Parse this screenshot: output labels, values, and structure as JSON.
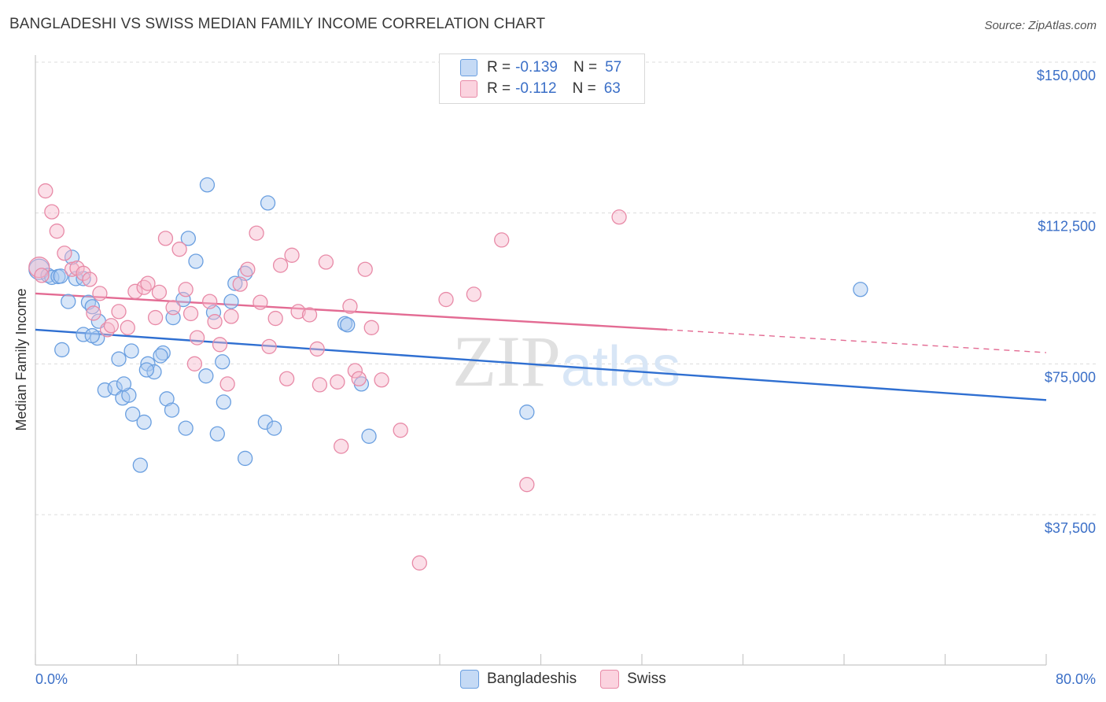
{
  "title": "BANGLADESHI VS SWISS MEDIAN FAMILY INCOME CORRELATION CHART",
  "source": "Source: ZipAtlas.com",
  "legend": {
    "rows": [
      {
        "r_label": "R =",
        "r_value": "-0.139",
        "n_label": "N =",
        "n_value": "57",
        "color": "#a9c8f0"
      },
      {
        "r_label": "R =",
        "r_value": "-0.112",
        "n_label": "N =",
        "n_value": "63",
        "color": "#f7b8cb"
      }
    ]
  },
  "bottom_legend": {
    "items": [
      {
        "label": "Bangladeshis",
        "color": "#a9c8f0"
      },
      {
        "label": "Swiss",
        "color": "#f7b8cb"
      }
    ]
  },
  "chart_data": {
    "type": "scatter",
    "title": "BANGLADESHI VS SWISS MEDIAN FAMILY INCOME CORRELATION CHART",
    "xlabel": "",
    "ylabel": "Median Family Income",
    "xlim": [
      0,
      80
    ],
    "ylim": [
      0,
      155000
    ],
    "x_tick_labels": [
      "0.0%",
      "80.0%"
    ],
    "y_ticks": [
      37500,
      75000,
      112500,
      150000
    ],
    "y_tick_labels": [
      "$37,500",
      "$75,000",
      "$112,500",
      "$150,000"
    ],
    "grid": true,
    "legend_position": "top-center",
    "watermark": "ZIPatlas",
    "series": [
      {
        "name": "Bangladeshis",
        "color": "#6a9fe0",
        "fill": "#a9c8f0",
        "trend": {
          "x": [
            0,
            80
          ],
          "y": [
            83500,
            66000
          ],
          "color": "#2f6fd1"
        },
        "points": [
          [
            0.3,
            98500
          ],
          [
            1.0,
            97000
          ],
          [
            1.3,
            96500
          ],
          [
            1.8,
            96700
          ],
          [
            2.0,
            96800
          ],
          [
            2.9,
            101500
          ],
          [
            3.2,
            96200
          ],
          [
            2.6,
            90500
          ],
          [
            4.2,
            90300
          ],
          [
            4.5,
            89200
          ],
          [
            3.8,
            96200
          ],
          [
            5.0,
            85600
          ],
          [
            3.8,
            82300
          ],
          [
            4.9,
            81400
          ],
          [
            4.5,
            82000
          ],
          [
            6.6,
            76200
          ],
          [
            2.1,
            78500
          ],
          [
            7.6,
            78200
          ],
          [
            8.9,
            75000
          ],
          [
            9.4,
            73000
          ],
          [
            10.1,
            77700
          ],
          [
            9.9,
            77000
          ],
          [
            8.8,
            73500
          ],
          [
            5.5,
            68500
          ],
          [
            6.3,
            69000
          ],
          [
            6.9,
            66500
          ],
          [
            7.4,
            67200
          ],
          [
            7.0,
            70000
          ],
          [
            10.4,
            66300
          ],
          [
            10.8,
            63500
          ],
          [
            7.7,
            62500
          ],
          [
            8.6,
            60500
          ],
          [
            11.9,
            59000
          ],
          [
            13.5,
            72000
          ],
          [
            14.1,
            87800
          ],
          [
            11.7,
            91000
          ],
          [
            10.9,
            86500
          ],
          [
            14.9,
            65500
          ],
          [
            15.5,
            90500
          ],
          [
            15.8,
            95000
          ],
          [
            16.6,
            97500
          ],
          [
            14.8,
            75500
          ],
          [
            14.4,
            57600
          ],
          [
            18.2,
            60500
          ],
          [
            18.9,
            59000
          ],
          [
            16.6,
            51500
          ],
          [
            8.3,
            49800
          ],
          [
            12.1,
            106200
          ],
          [
            12.7,
            100500
          ],
          [
            13.6,
            119500
          ],
          [
            18.4,
            115000
          ],
          [
            24.5,
            85000
          ],
          [
            24.7,
            84700
          ],
          [
            25.8,
            70000
          ],
          [
            26.4,
            57000
          ],
          [
            38.9,
            63000
          ],
          [
            65.3,
            93500
          ]
        ]
      },
      {
        "name": "Swiss",
        "color": "#e88aa7",
        "fill": "#f7b8cb",
        "trend": {
          "x": [
            0,
            50,
            80
          ],
          "y": [
            92500,
            83500,
            77800
          ],
          "color": "#e36b93",
          "solid_until": 50
        },
        "points": [
          [
            0.3,
            99000
          ],
          [
            0.8,
            118000
          ],
          [
            1.3,
            112800
          ],
          [
            1.7,
            108000
          ],
          [
            2.3,
            102500
          ],
          [
            2.9,
            98500
          ],
          [
            3.3,
            98800
          ],
          [
            3.8,
            97500
          ],
          [
            4.3,
            96000
          ],
          [
            4.6,
            87600
          ],
          [
            5.1,
            92500
          ],
          [
            5.7,
            83500
          ],
          [
            6.0,
            84500
          ],
          [
            6.6,
            88000
          ],
          [
            7.3,
            84000
          ],
          [
            7.9,
            93000
          ],
          [
            8.6,
            94000
          ],
          [
            8.9,
            95000
          ],
          [
            9.5,
            86500
          ],
          [
            9.8,
            92800
          ],
          [
            10.3,
            106200
          ],
          [
            10.9,
            89000
          ],
          [
            11.4,
            103500
          ],
          [
            11.9,
            93500
          ],
          [
            12.3,
            87500
          ],
          [
            12.8,
            81500
          ],
          [
            12.6,
            75000
          ],
          [
            13.8,
            90500
          ],
          [
            14.2,
            85500
          ],
          [
            14.6,
            79800
          ],
          [
            15.2,
            70000
          ],
          [
            15.5,
            86800
          ],
          [
            16.2,
            94800
          ],
          [
            16.8,
            98500
          ],
          [
            17.5,
            107500
          ],
          [
            17.8,
            90300
          ],
          [
            18.5,
            79300
          ],
          [
            19.0,
            86300
          ],
          [
            19.4,
            99500
          ],
          [
            19.9,
            71300
          ],
          [
            20.3,
            102000
          ],
          [
            20.8,
            88000
          ],
          [
            21.7,
            87200
          ],
          [
            22.3,
            78700
          ],
          [
            22.5,
            69800
          ],
          [
            23.0,
            100300
          ],
          [
            23.9,
            70500
          ],
          [
            24.2,
            54500
          ],
          [
            24.9,
            89300
          ],
          [
            25.3,
            73300
          ],
          [
            25.6,
            71300
          ],
          [
            26.1,
            98500
          ],
          [
            26.6,
            84000
          ],
          [
            27.4,
            71000
          ],
          [
            28.9,
            58500
          ],
          [
            30.4,
            25500
          ],
          [
            32.5,
            91000
          ],
          [
            34.7,
            92300
          ],
          [
            36.9,
            105800
          ],
          [
            38.9,
            45000
          ],
          [
            46.2,
            111500
          ],
          [
            37.6,
            146000
          ],
          [
            0.5,
            97000
          ]
        ]
      }
    ]
  }
}
